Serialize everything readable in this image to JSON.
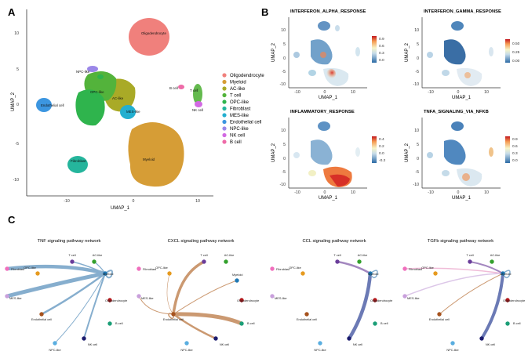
{
  "panels": {
    "a": "A",
    "b": "B",
    "c": "C"
  },
  "umap": {
    "xlabel": "UMAP_1",
    "ylabel": "UMAP_2",
    "xticks": [
      "-10",
      "0",
      "10"
    ],
    "yticks": [
      "10",
      "5",
      "0",
      "-5",
      "-10"
    ],
    "clusters": [
      {
        "name": "Oligodendrocyte",
        "color": "#f0807c"
      },
      {
        "name": "Myeloid",
        "color": "#d69d36"
      },
      {
        "name": "AC-like",
        "color": "#a9aa27"
      },
      {
        "name": "T cell",
        "color": "#53b33b"
      },
      {
        "name": "OPC-like",
        "color": "#2fb44d"
      },
      {
        "name": "Fibroblast",
        "color": "#25b59c"
      },
      {
        "name": "MES-like",
        "color": "#23afd0"
      },
      {
        "name": "Endothelial cell",
        "color": "#3c96e0"
      },
      {
        "name": "NPC-like",
        "color": "#9b87e8"
      },
      {
        "name": "NK cell",
        "color": "#d26ae3"
      },
      {
        "name": "B cell",
        "color": "#ee6ba8"
      }
    ]
  },
  "feature_plots": [
    {
      "title": "INTERFERON_ALPHA_RESPONSE",
      "scale": [
        "0.9",
        "0.6",
        "0.3",
        "0.0"
      ]
    },
    {
      "title": "INTERFERON_GAMMA_RESPONSE",
      "scale": [
        "0.50",
        "0.25",
        "0.00"
      ]
    },
    {
      "title": "INFLAMMATORY_RESPONSE",
      "scale": [
        "0.4",
        "0.2",
        "0.0",
        "-0.2"
      ]
    },
    {
      "title": "TNFA_SIGNALING_VIA_NFKB",
      "scale": [
        "0.9",
        "0.6",
        "0.3",
        "0.0"
      ]
    }
  ],
  "feature_axes": {
    "xlabel": "UMAP_1",
    "ylabel": "UMAP_2",
    "xticks": [
      "-10",
      "0",
      "10"
    ],
    "yticks": [
      "10",
      "5",
      "0",
      "-5",
      "-10"
    ]
  },
  "networks": {
    "titles": [
      "TNF signaling pathway network",
      "CXCL signaling pathway network",
      "CCL signaling pathway network",
      "TGFb signaling pathway network"
    ],
    "nodes": [
      {
        "name": "T cell",
        "color": "#6a3d9a"
      },
      {
        "name": "AC-like",
        "color": "#33a02c"
      },
      {
        "name": "OPC-like",
        "color": "#e69a1f"
      },
      {
        "name": "Myeloid",
        "color": "#1f78b4"
      },
      {
        "name": "Fibroblast",
        "color": "#f06fbd"
      },
      {
        "name": "Oligodendrocyte",
        "color": "#b2181b"
      },
      {
        "name": "MES-like",
        "color": "#c9a0dc"
      },
      {
        "name": "B cell",
        "color": "#1b9e77"
      },
      {
        "name": "Endothelial cell",
        "color": "#a6521e"
      },
      {
        "name": "NK cell",
        "color": "#1c1c6e"
      },
      {
        "name": "NPC-like",
        "color": "#5aaee0"
      }
    ]
  }
}
